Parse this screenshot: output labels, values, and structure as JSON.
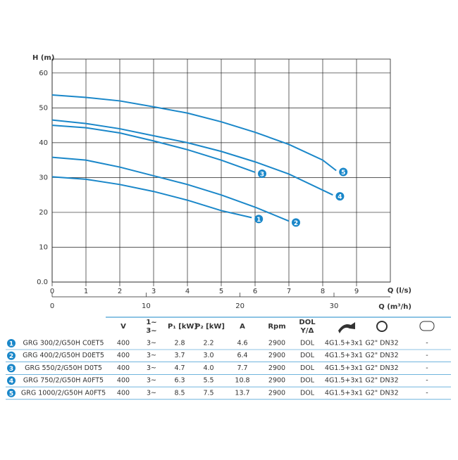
{
  "chart_data": {
    "type": "line",
    "color": "#1a87c9",
    "grid": true,
    "ylabel": "H (m)",
    "xlabel": "Q (l/s)",
    "x2label": "Q (m³/h)",
    "xlim": [
      0,
      10
    ],
    "xticks": [
      0,
      1,
      2,
      3,
      4,
      5,
      6,
      7,
      8,
      9
    ],
    "x2lim": [
      0,
      36
    ],
    "x2ticks": [
      0,
      10,
      20,
      30
    ],
    "ylim": [
      0,
      64
    ],
    "yticks": [
      {
        "value": 0,
        "label": "0.0"
      },
      10,
      20,
      30,
      40,
      50,
      60
    ],
    "series": [
      {
        "label": "1",
        "x": [
          0,
          1,
          2,
          3,
          4,
          5,
          5.9
        ],
        "values": [
          30.2,
          29.5,
          28,
          26,
          23.5,
          20.5,
          18.5
        ]
      },
      {
        "label": "2",
        "x": [
          0,
          1,
          2,
          3,
          4,
          5,
          6,
          7
        ],
        "values": [
          35.8,
          35,
          33,
          30.5,
          28,
          25,
          21.5,
          17.5
        ]
      },
      {
        "label": "3",
        "x": [
          0,
          1,
          2,
          3,
          4,
          5,
          6
        ],
        "values": [
          45,
          44.3,
          42.8,
          40.5,
          38,
          35,
          31.5
        ]
      },
      {
        "label": "4",
        "x": [
          0,
          1,
          2,
          3,
          4,
          5,
          6,
          7,
          8.3
        ],
        "values": [
          46.5,
          45.5,
          44,
          42,
          40,
          37.5,
          34.5,
          31,
          25
        ]
      },
      {
        "label": "5",
        "x": [
          0,
          1,
          2,
          3,
          4,
          5,
          6,
          7,
          8,
          8.4
        ],
        "values": [
          53.7,
          53,
          52,
          50.3,
          48.5,
          46,
          43,
          39.5,
          35,
          32
        ]
      }
    ]
  },
  "table": {
    "headers": [
      "V",
      [
        "1~",
        "3~"
      ],
      "P₁ [kW]",
      "P₂ [kW]",
      "A",
      "Rpm",
      [
        "DOL",
        "Y/Δ"
      ]
    ],
    "rows": [
      [
        "1",
        "GRG 300/2/G50H C0ET5",
        "400",
        "3~",
        "2.8",
        "2.2",
        "4.6",
        "2900",
        "DOL",
        "4G1.5+3x1",
        "G2\" DN32",
        "-"
      ],
      [
        "2",
        "GRG 400/2/G50H D0ET5",
        "400",
        "3~",
        "3.7",
        "3.0",
        "6.4",
        "2900",
        "DOL",
        "4G1.5+3x1",
        "G2\" DN32",
        "-"
      ],
      [
        "3",
        "GRG 550/2/G50H D0T5",
        "400",
        "3~",
        "4.7",
        "4.0",
        "7.7",
        "2900",
        "DOL",
        "4G1.5+3x1",
        "G2\" DN32",
        "-"
      ],
      [
        "4",
        "GRG 750/2/G50H A0FT5",
        "400",
        "3~",
        "6.3",
        "5.5",
        "10.8",
        "2900",
        "DOL",
        "4G1.5+3x1",
        "G2\" DN32",
        "-"
      ],
      [
        "5",
        "GRG 1000/2/G50H A0FT5",
        "400",
        "3~",
        "8.5",
        "7.5",
        "13.7",
        "2900",
        "DOL",
        "4G1.5+3x1",
        "G2\" DN32",
        "-"
      ]
    ]
  }
}
